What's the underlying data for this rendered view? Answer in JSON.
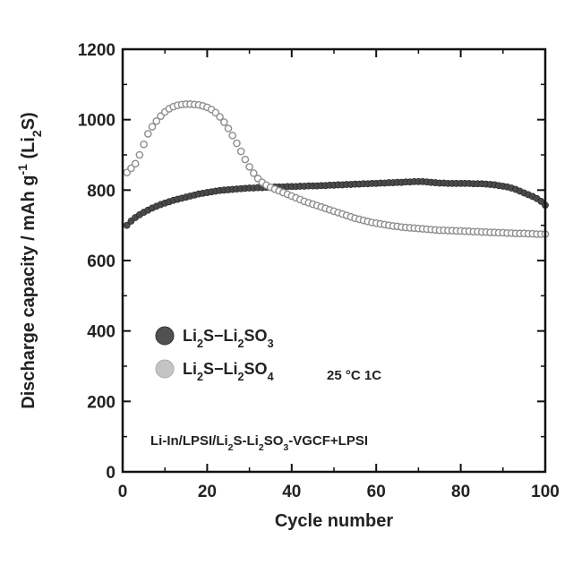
{
  "chart_data": {
    "type": "scatter",
    "xlabel": "Cycle number",
    "ylabel_parts": [
      "Discharge capacity / mAh g",
      "-1",
      " (Li",
      "2",
      "S)"
    ],
    "xlim": [
      0,
      100
    ],
    "ylim": [
      0,
      1200
    ],
    "xticks": [
      0,
      20,
      40,
      60,
      80,
      100
    ],
    "yticks": [
      0,
      200,
      400,
      600,
      800,
      1000,
      1200
    ],
    "grid": false,
    "legend_position": "lower-left",
    "series": [
      {
        "name_parts": [
          "Li",
          "2",
          "S−Li",
          "2",
          "SO",
          "3"
        ],
        "color": "#4a4a4a",
        "marker": "filled-circle",
        "x": [
          1,
          2,
          3,
          4,
          5,
          6,
          7,
          8,
          9,
          10,
          11,
          12,
          13,
          14,
          15,
          16,
          17,
          18,
          19,
          20,
          21,
          22,
          23,
          24,
          25,
          26,
          27,
          28,
          29,
          30,
          31,
          32,
          33,
          34,
          35,
          36,
          37,
          38,
          39,
          40,
          41,
          42,
          43,
          44,
          45,
          46,
          47,
          48,
          49,
          50,
          51,
          52,
          53,
          54,
          55,
          56,
          57,
          58,
          59,
          60,
          61,
          62,
          63,
          64,
          65,
          66,
          67,
          68,
          69,
          70,
          71,
          72,
          73,
          74,
          75,
          76,
          77,
          78,
          79,
          80,
          81,
          82,
          83,
          84,
          85,
          86,
          87,
          88,
          89,
          90,
          91,
          92,
          93,
          94,
          95,
          96,
          97,
          98,
          99,
          100
        ],
        "y": [
          700,
          712,
          722,
          730,
          737,
          743,
          749,
          754,
          759,
          763,
          767,
          771,
          774,
          777,
          780,
          783,
          786,
          789,
          791,
          793,
          795,
          797,
          799,
          800,
          801,
          802,
          803,
          804,
          805,
          806,
          806,
          807,
          807,
          808,
          808,
          809,
          809,
          809,
          810,
          810,
          810,
          811,
          811,
          812,
          812,
          812,
          813,
          813,
          814,
          814,
          815,
          815,
          816,
          816,
          817,
          817,
          818,
          818,
          819,
          819,
          820,
          820,
          821,
          821,
          822,
          822,
          823,
          823,
          824,
          824,
          824,
          823,
          822,
          821,
          820,
          820,
          819,
          819,
          819,
          819,
          819,
          819,
          818,
          818,
          818,
          817,
          816,
          815,
          813,
          811,
          809,
          806,
          802,
          797,
          792,
          787,
          782,
          776,
          768,
          757
        ]
      },
      {
        "name_parts": [
          "Li",
          "2",
          "S−Li",
          "2",
          "SO",
          "4"
        ],
        "color": "#8e8e8e",
        "marker": "open-circle",
        "x": [
          1,
          2,
          3,
          4,
          5,
          6,
          7,
          8,
          9,
          10,
          11,
          12,
          13,
          14,
          15,
          16,
          17,
          18,
          19,
          20,
          21,
          22,
          23,
          24,
          25,
          26,
          27,
          28,
          29,
          30,
          31,
          32,
          33,
          34,
          35,
          36,
          37,
          38,
          39,
          40,
          41,
          42,
          43,
          44,
          45,
          46,
          47,
          48,
          49,
          50,
          51,
          52,
          53,
          54,
          55,
          56,
          57,
          58,
          59,
          60,
          61,
          62,
          63,
          64,
          65,
          66,
          67,
          68,
          69,
          70,
          71,
          72,
          73,
          74,
          75,
          76,
          77,
          78,
          79,
          80,
          81,
          82,
          83,
          84,
          85,
          86,
          87,
          88,
          89,
          90,
          91,
          92,
          93,
          94,
          95,
          96,
          97,
          98,
          99,
          100
        ],
        "y": [
          850,
          862,
          875,
          900,
          930,
          960,
          980,
          996,
          1010,
          1022,
          1031,
          1037,
          1041,
          1043,
          1044,
          1044,
          1043,
          1042,
          1039,
          1035,
          1029,
          1020,
          1008,
          993,
          975,
          955,
          933,
          910,
          887,
          866,
          848,
          833,
          822,
          814,
          808,
          803,
          798,
          793,
          788,
          783,
          778,
          773,
          768,
          764,
          760,
          756,
          752,
          748,
          744,
          740,
          736,
          732,
          728,
          724,
          720,
          717,
          714,
          711,
          708,
          706,
          704,
          702,
          700,
          698,
          697,
          695,
          694,
          693,
          692,
          691,
          690,
          689,
          688,
          687,
          686,
          686,
          685,
          685,
          684,
          684,
          683,
          683,
          682,
          682,
          681,
          681,
          680,
          680,
          679,
          679,
          678,
          678,
          677,
          677,
          677,
          676,
          676,
          675,
          675,
          675
        ]
      }
    ],
    "annotations": [
      {
        "id": "conditions",
        "text": "25 °C  1C"
      },
      {
        "id": "cell",
        "parts": [
          "Li-In/LPSI/Li",
          "2",
          "S-Li",
          "2",
          "SO",
          "3",
          "-VGCF+LPSI"
        ]
      }
    ]
  }
}
